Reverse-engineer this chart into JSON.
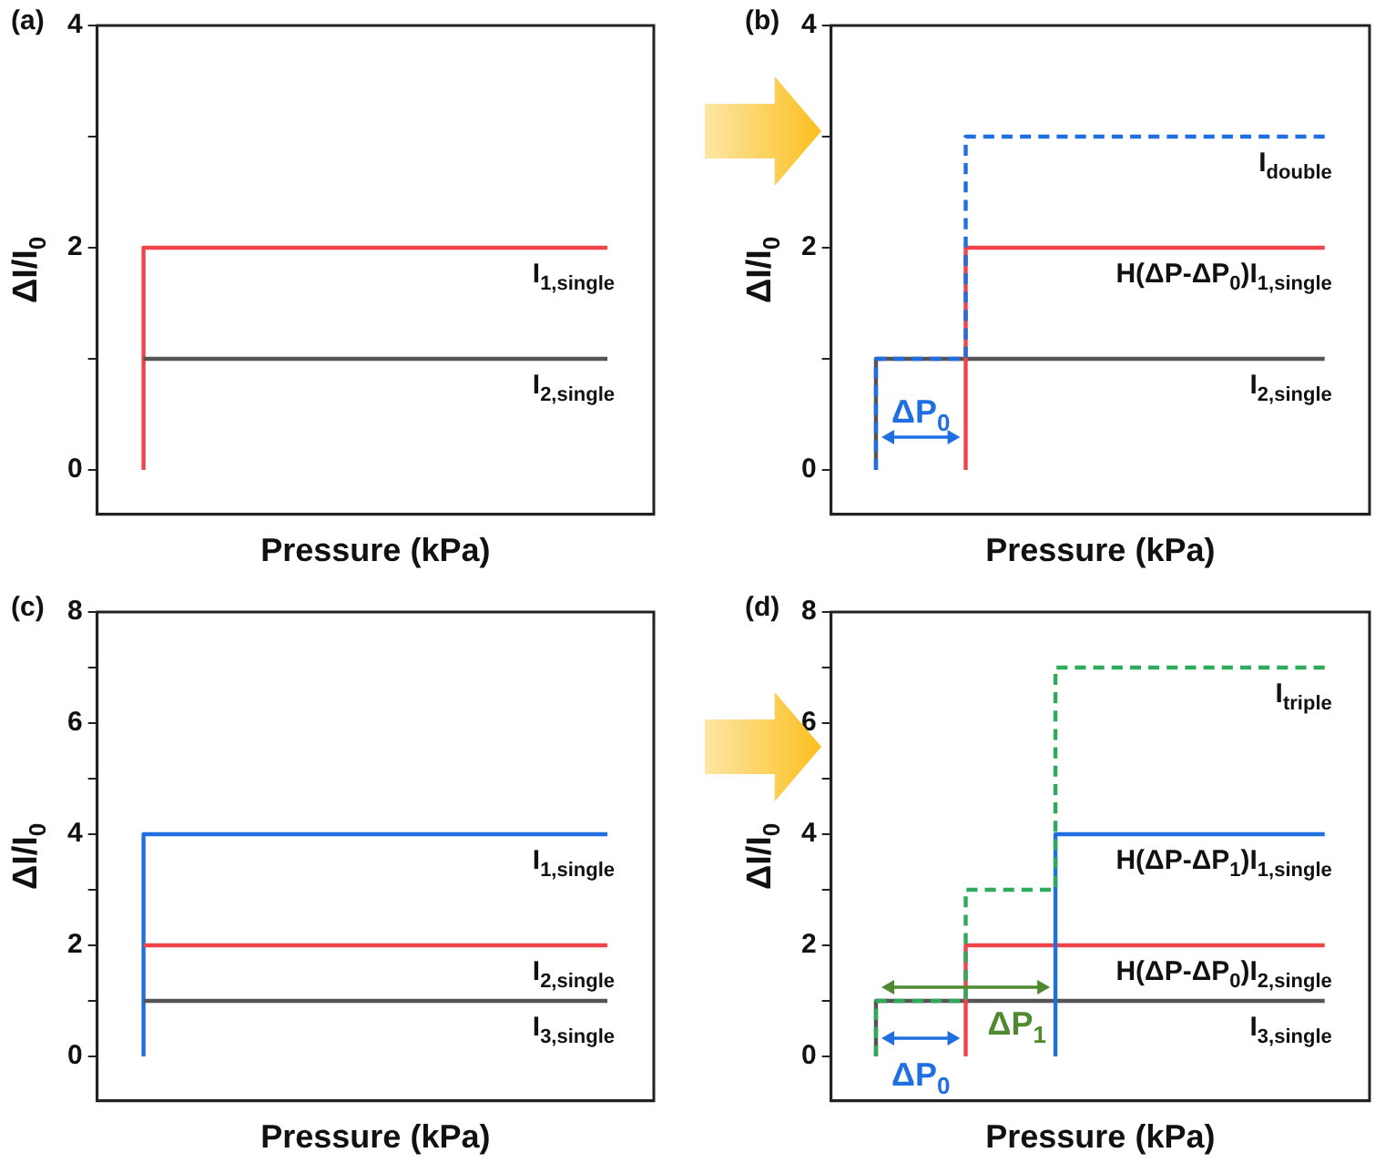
{
  "chart_data": [
    {
      "type": "step",
      "title": "(a)",
      "xlabel": "Pressure (kPa)",
      "ylabel": "ΔI/I$_{0}$",
      "categories": [
        null,
        null,
        null,
        null,
        null,
        null
      ],
      "ylim": [
        -0.4,
        4
      ],
      "yticks": [
        0,
        {
          "value": 1,
          "label": null
        },
        2,
        {
          "value": 3,
          "label": null
        },
        4
      ],
      "tick_labels": "y",
      "grid": false,
      "legend": false,
      "series": [
        {
          "name": "I$_{1,single}$",
          "color": "#f0444a",
          "values": [
            0,
            2,
            2,
            2,
            2,
            2
          ]
        },
        {
          "name": "I$_{2,single}$",
          "color": "#555555",
          "values": [
            1,
            1,
            1,
            1,
            1,
            1
          ]
        }
      ]
    },
    {
      "type": "step",
      "title": "(b)",
      "xlabel": "Pressure (kPa)",
      "ylabel": "ΔI/I$_{0}$",
      "categories": [
        null,
        null,
        null,
        null,
        null,
        null
      ],
      "ylim": [
        -0.4,
        4
      ],
      "yticks": [
        0,
        {
          "value": 1,
          "label": null
        },
        2,
        {
          "value": 3,
          "label": null
        },
        4
      ],
      "tick_labels": "y",
      "grid": false,
      "legend": false,
      "series": [
        {
          "name": "I$_{2,single}$",
          "color": "#555555",
          "values": [
            0,
            1,
            1,
            1,
            1,
            1
          ]
        },
        {
          "name": "H(ΔP-ΔP$_{0}$)I$_{1,single}$",
          "color": "#f0444a",
          "values": [
            null,
            0,
            2,
            2,
            2,
            2
          ]
        },
        {
          "name": "I$_{double}$",
          "color": "#1f6fe0",
          "line_style": "dashed",
          "values": [
            0,
            1,
            3,
            3,
            3,
            3
          ]
        }
      ],
      "annotations": [
        "ΔP$_{0}$"
      ]
    },
    {
      "type": "step",
      "title": "(c)",
      "xlabel": "Pressure (kPa)",
      "ylabel": "ΔI/I$_{0}$",
      "categories": [
        null,
        null,
        null,
        null,
        null,
        null
      ],
      "ylim": [
        -0.8,
        8
      ],
      "yticks": [
        0,
        {
          "value": 1,
          "label": null
        },
        2,
        {
          "value": 3,
          "label": null
        },
        4,
        {
          "value": 5,
          "label": null
        },
        6,
        {
          "value": 7,
          "label": null
        },
        8
      ],
      "tick_labels": "y",
      "grid": false,
      "legend": false,
      "series": [
        {
          "name": "I$_{1,single}$",
          "color": "#1f6fe0",
          "values": [
            0,
            4,
            4,
            4,
            4,
            4
          ]
        },
        {
          "name": "I$_{2,single}$",
          "color": "#f0444a",
          "values": [
            2,
            2,
            2,
            2,
            2,
            2
          ]
        },
        {
          "name": "I$_{3,single}$",
          "color": "#555555",
          "values": [
            1,
            1,
            1,
            1,
            1,
            1
          ]
        }
      ]
    },
    {
      "type": "step",
      "title": "(d)",
      "xlabel": "Pressure (kPa)",
      "ylabel": "ΔI/I$_{0}$",
      "categories": [
        null,
        null,
        null,
        null,
        null,
        null
      ],
      "ylim": [
        -0.8,
        8
      ],
      "yticks": [
        0,
        {
          "value": 1,
          "label": null
        },
        2,
        {
          "value": 3,
          "label": null
        },
        4,
        {
          "value": 5,
          "label": null
        },
        6,
        {
          "value": 7,
          "label": null
        },
        8
      ],
      "tick_labels": "y",
      "grid": false,
      "legend": false,
      "series": [
        {
          "name": "I$_{3,single}$",
          "color": "#555555",
          "values": [
            0,
            1,
            1,
            1,
            1,
            1
          ]
        },
        {
          "name": "H(ΔP-ΔP$_{0}$)I$_{2,single}$",
          "color": "#f0444a",
          "values": [
            null,
            0,
            2,
            2,
            2,
            2
          ]
        },
        {
          "name": "H(ΔP-ΔP$_{1}$)I$_{1,single}$",
          "color": "#1f6fe0",
          "values": [
            null,
            null,
            0,
            4,
            4,
            4
          ]
        },
        {
          "name": "I$_{triple}$",
          "color": "#2eaa5a",
          "line_style": "dashed",
          "values": [
            0,
            1,
            3,
            7,
            7,
            7
          ]
        }
      ],
      "annotations": [
        "ΔP$_{0}$",
        "ΔP$_{1}$"
      ]
    }
  ]
}
